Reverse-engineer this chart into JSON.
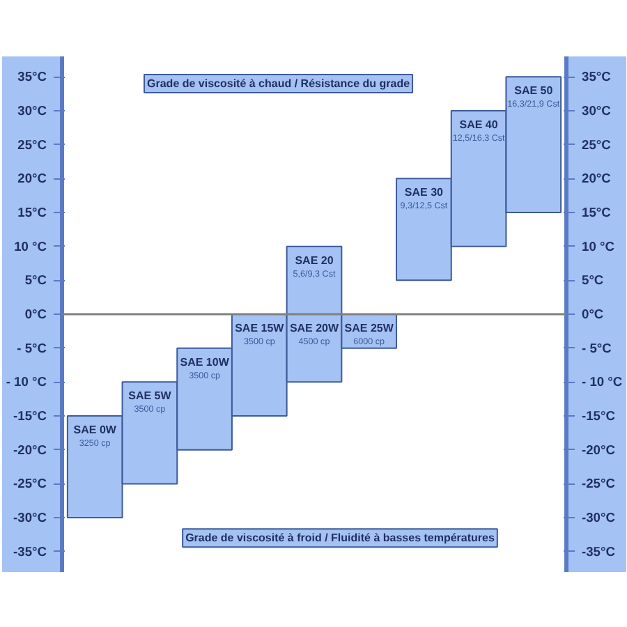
{
  "chart_data": {
    "type": "bar",
    "categories": [
      null,
      null,
      null,
      null,
      null,
      null,
      null,
      null,
      null
    ],
    "series": [
      {
        "color": "#a4c2f4",
        "base": [
          -30,
          -25,
          -20,
          -15,
          -10,
          -5,
          null,
          null,
          null
        ],
        "values": [
          15,
          15,
          15,
          15,
          10,
          5,
          null,
          null,
          null
        ],
        "value_labels": [
          "SAE 0W\n3250 cp",
          "SAE 5W\n3500 cp",
          "SAE 10W\n3500 cp",
          "SAE 15W\n3500 cp",
          "SAE 20W\n4500 cp",
          "SAE 25W\n6000 cp",
          null,
          null,
          null
        ]
      },
      {
        "color": "#a4c2f4",
        "base": [
          null,
          null,
          null,
          null,
          0,
          null,
          5,
          10,
          15
        ],
        "values": [
          null,
          null,
          null,
          null,
          10,
          null,
          15,
          20,
          20
        ],
        "value_labels": [
          null,
          null,
          null,
          null,
          "SAE 20\n5,6/9,3 Cst",
          null,
          "SAE 30\n9,3/12,5 Cst",
          "SAE 40\n12,5/16,3 Cst",
          "SAE 50\n16,3/21,9 Cst"
        ]
      }
    ],
    "ylim": [
      -38,
      38
    ],
    "yticks": [
      {
        "value": 35,
        "label": "35°C"
      },
      {
        "value": 30,
        "label": "30°C"
      },
      {
        "value": 25,
        "label": "25°C"
      },
      {
        "value": 20,
        "label": "20°C"
      },
      {
        "value": 15,
        "label": "15°C"
      },
      {
        "value": 10,
        "label": "10 °C"
      },
      {
        "value": 5,
        "label": "5°C"
      },
      {
        "value": 0,
        "label": "0°C"
      },
      {
        "value": -5,
        "label": "- 5°C"
      },
      {
        "value": -10,
        "label": "- 10 °C"
      },
      {
        "value": -15,
        "label": "-15°C"
      },
      {
        "value": -20,
        "label": "-20°C"
      },
      {
        "value": -25,
        "label": "-25°C"
      },
      {
        "value": -30,
        "label": "-30°C"
      },
      {
        "value": -35,
        "label": "-35°C"
      }
    ],
    "y2lim": [
      -38,
      38
    ],
    "y2ticks": [
      {
        "value": 35,
        "label": "35°C"
      },
      {
        "value": 30,
        "label": "30°C"
      },
      {
        "value": 25,
        "label": "25°C"
      },
      {
        "value": 20,
        "label": "20°C"
      },
      {
        "value": 15,
        "label": "15°C"
      },
      {
        "value": 10,
        "label": "10 °C"
      },
      {
        "value": 5,
        "label": "5°C"
      },
      {
        "value": 0,
        "label": "0°C"
      },
      {
        "value": -5,
        "label": "- 5°C"
      },
      {
        "value": -10,
        "label": "- 10 °C"
      },
      {
        "value": -15,
        "label": "-15°C"
      },
      {
        "value": -20,
        "label": "-20°C"
      },
      {
        "value": -25,
        "label": "-25°C"
      },
      {
        "value": -30,
        "label": "-30°C"
      },
      {
        "value": -35,
        "label": "-35°C"
      }
    ],
    "ref_lines": [
      {
        "axis": "y",
        "value": 0,
        "color": "#808080"
      }
    ],
    "annotations": [
      "Grade de viscosité à chaud / Résistance du grade",
      "Grade de viscosité à froid / Fluidité à basses températures"
    ],
    "tick_labels": "y",
    "grid": false
  }
}
